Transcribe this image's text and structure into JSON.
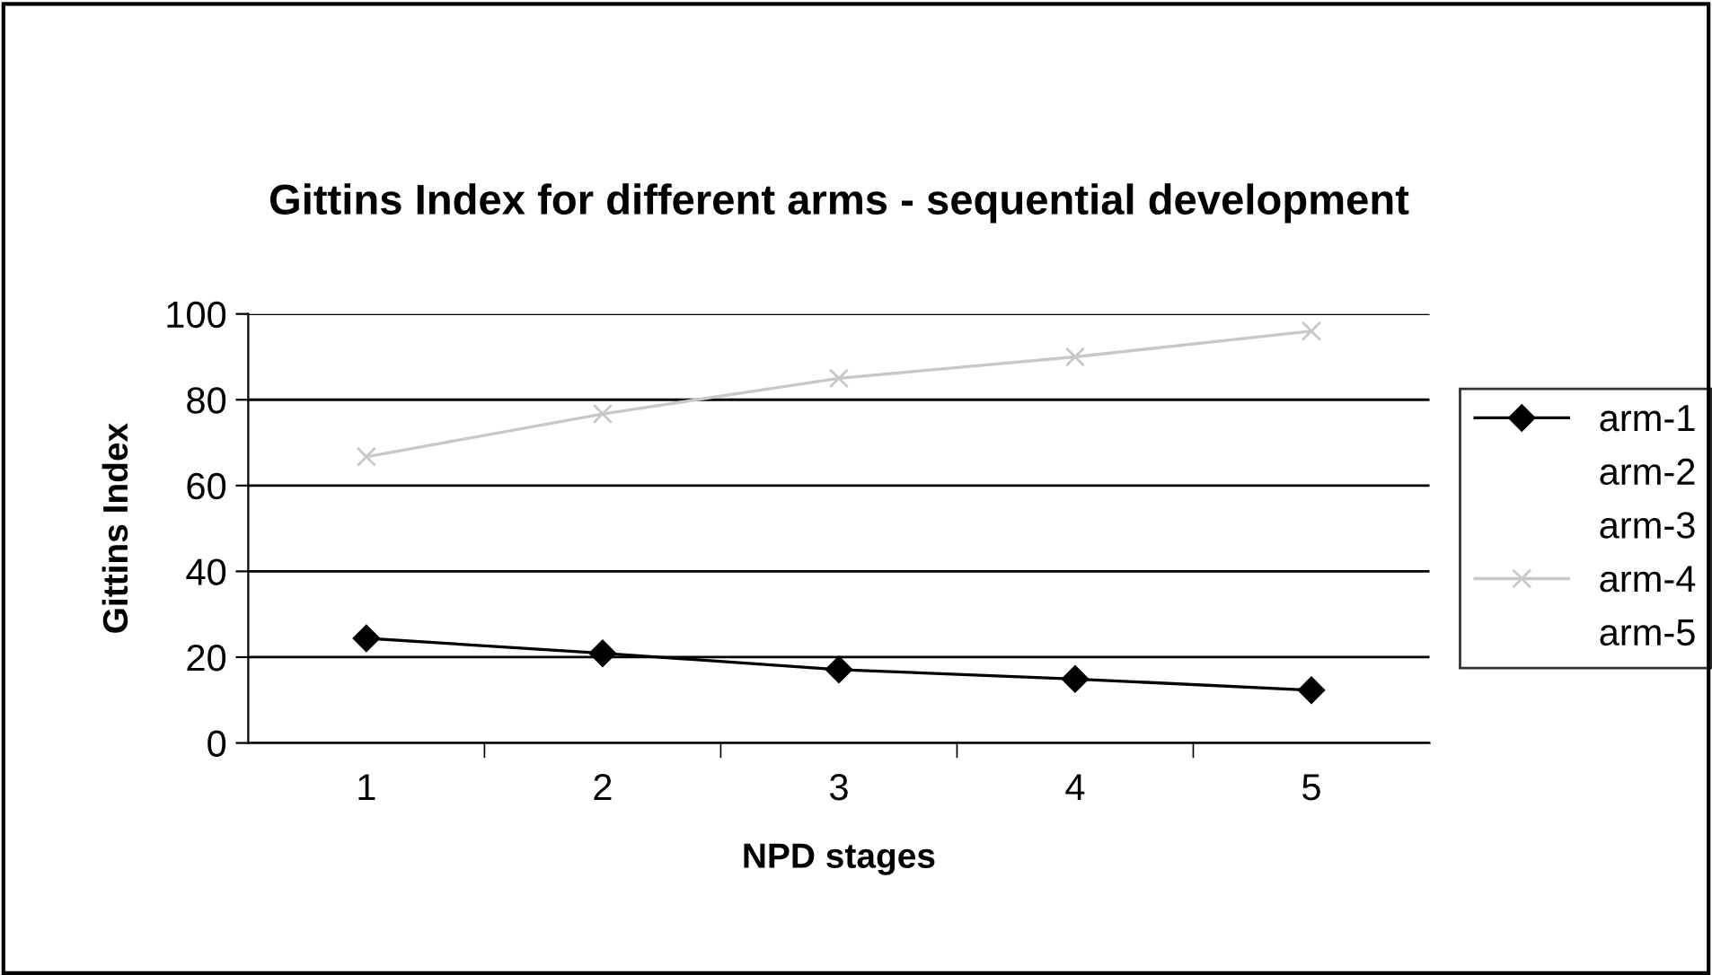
{
  "chart_data": {
    "type": "line",
    "title": "Gittins Index for different arms - sequential development",
    "xlabel": "NPD stages",
    "ylabel": "Gittins Index",
    "categories": [
      "1",
      "2",
      "3",
      "4",
      "5"
    ],
    "series": [
      {
        "name": "arm-1",
        "color": "#000000",
        "marker": "diamond",
        "values": [
          24.4,
          20.9,
          17.1,
          14.9,
          12.3
        ]
      },
      {
        "name": "arm-2",
        "marker": "none",
        "values": [
          null,
          null,
          null,
          null,
          null
        ]
      },
      {
        "name": "arm-3",
        "marker": "none",
        "values": [
          null,
          null,
          null,
          null,
          null
        ]
      },
      {
        "name": "arm-4",
        "color": "#c8c8c8",
        "marker": "cross",
        "values": [
          66.7,
          76.7,
          85,
          90,
          96
        ]
      },
      {
        "name": "arm-5",
        "marker": "none",
        "values": [
          null,
          null,
          null,
          null,
          null
        ]
      }
    ],
    "ylim": [
      0,
      100
    ],
    "yticks": [
      0,
      20,
      40,
      60,
      80,
      100
    ],
    "grid": "y",
    "legend": "right"
  }
}
